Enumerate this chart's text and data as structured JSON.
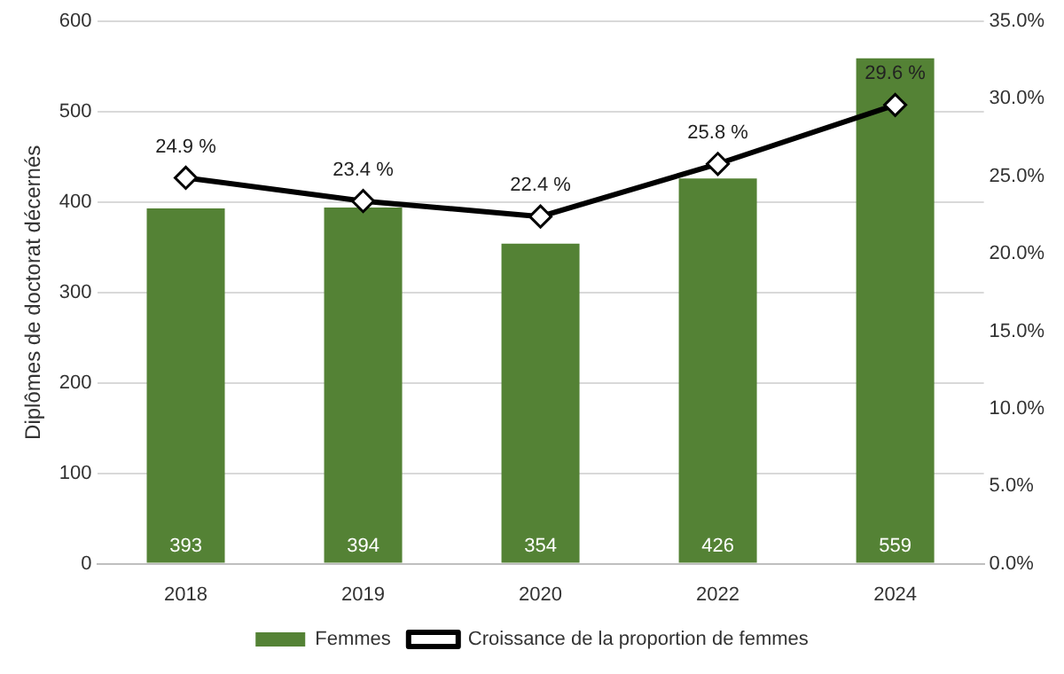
{
  "chart_data": {
    "type": "bar",
    "ylabel": "Diplômes de doctorat décernés",
    "categories": [
      "2018",
      "2019",
      "2020",
      "2022",
      "2024"
    ],
    "series": [
      {
        "name": "Femmes",
        "color": "#548235",
        "values": [
          393,
          394,
          354,
          426,
          559
        ],
        "value_labels": [
          "393",
          "394",
          "354",
          "426",
          "559"
        ]
      },
      {
        "name": "Croissance de la proportion de femmes",
        "type": "line",
        "axis": "y2",
        "color": "#000000",
        "values": [
          24.9,
          23.4,
          22.4,
          25.8,
          29.6
        ],
        "value_labels": [
          "24.9 %",
          "23.4 %",
          "22.4 %",
          "25.8 %",
          "29.6 %"
        ],
        "marker": "diamond",
        "line_style": "solid"
      }
    ],
    "ylim": [
      0,
      600
    ],
    "yticks": [
      0,
      100,
      200,
      300,
      400,
      500,
      600
    ],
    "y2lim": [
      0,
      35
    ],
    "y2ticks": [
      {
        "value": 0,
        "label": "0.0%"
      },
      {
        "value": 5,
        "label": "5.0%"
      },
      {
        "value": 10,
        "label": "10.0%"
      },
      {
        "value": 15,
        "label": "15.0%"
      },
      {
        "value": 20,
        "label": "20.0%"
      },
      {
        "value": 25,
        "label": "25.0%"
      },
      {
        "value": 30,
        "label": "30.0%"
      },
      {
        "value": 35,
        "label": "35.0%"
      }
    ],
    "grid": "y",
    "legend": "bottom"
  }
}
